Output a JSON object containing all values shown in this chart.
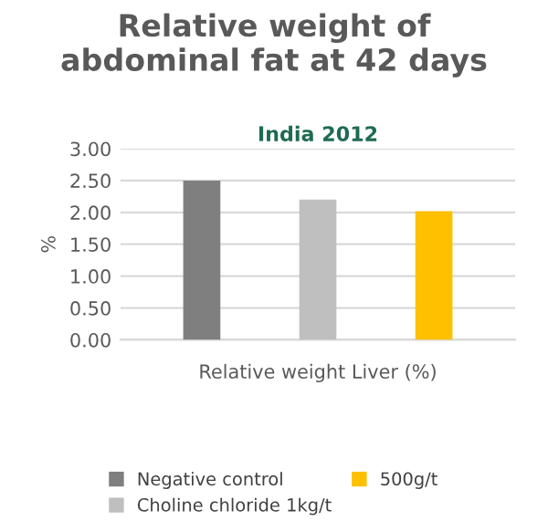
{
  "chart_data": {
    "type": "bar",
    "title": "Relative weight of\nabdominal fat at 42 days",
    "subtitle": "India 2012",
    "ylabel": "%",
    "xlabel": "Relative weight Liver (%)",
    "categories": [
      null,
      null,
      null
    ],
    "series": [
      {
        "name": "Negative control",
        "color": "#7f7f7f",
        "values": [
          2.5,
          null,
          null
        ]
      },
      {
        "name": "Choline chloride 1kg/t",
        "color": "#bfbfbf",
        "values": [
          null,
          2.2,
          null
        ]
      },
      {
        "name": "500g/t",
        "color": "#ffc000",
        "values": [
          null,
          null,
          2.02
        ]
      }
    ],
    "ylim": [
      0,
      3
    ],
    "yticks": [
      {
        "value": 0,
        "label": "0.00"
      },
      {
        "value": 0.5,
        "label": "0.50"
      },
      {
        "value": 1,
        "label": "1.00"
      },
      {
        "value": 1.5,
        "label": "1.50"
      },
      {
        "value": 2,
        "label": "2.00"
      },
      {
        "value": 2.5,
        "label": "2.50"
      },
      {
        "value": 3,
        "label": "3.00"
      }
    ],
    "grid": "y",
    "legend": "bottom"
  }
}
